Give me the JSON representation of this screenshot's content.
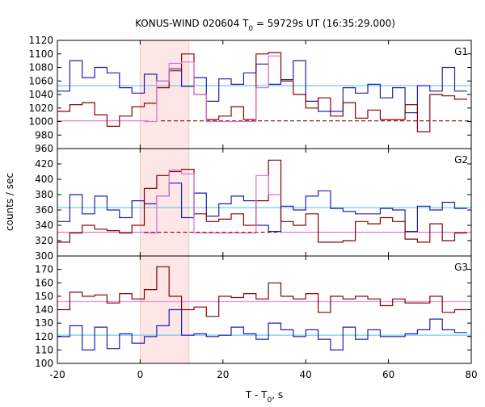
{
  "chart_data": {
    "type": "line",
    "title": "KONUS-WIND 020604 T",
    "title_subscript": "0",
    "title_suffix": " = 59729s UT (16:35:29.000)",
    "xlabel": "T - T",
    "xlabel_subscript": "0",
    "xlabel_suffix": ", s",
    "ylabel": "counts / sec",
    "xlim": [
      -20,
      80
    ],
    "x_ticks": [
      -20,
      0,
      20,
      40,
      60,
      80
    ],
    "x_tick_labels": [
      "-20",
      "0",
      "20",
      "40",
      "60",
      "80"
    ],
    "highlight_interval": [
      0,
      11.8
    ],
    "highlight_color": "#fde6e6",
    "panels": [
      {
        "label": "G1",
        "ylim": [
          960,
          1120
        ],
        "y_ticks": [
          960,
          980,
          1000,
          1020,
          1040,
          1060,
          1080,
          1100,
          1120
        ],
        "y_tick_labels": [
          "960",
          "980",
          "1000",
          "1020",
          "1040",
          "1060",
          "1080",
          "1100",
          "1120"
        ],
        "series": [
          {
            "color": "#2020b0",
            "style": "step",
            "edges": [
              -20,
              -17,
              -14,
              -11,
              -8,
              -5,
              -2,
              1,
              4,
              7,
              10,
              13,
              16,
              19,
              22,
              25,
              28,
              31,
              34,
              37,
              40,
              43,
              46,
              49,
              52,
              55,
              58,
              61,
              64,
              67,
              70,
              73,
              76,
              79
            ],
            "values": [
              1045,
              1090,
              1065,
              1080,
              1072,
              1050,
              1042,
              1070,
              1060,
              1078,
              1052,
              1065,
              1030,
              1063,
              1055,
              1072,
              1085,
              1055,
              1062,
              1090,
              1030,
              1015,
              1015,
              1050,
              1042,
              1055,
              1035,
              1050,
              1013,
              1053,
              1045,
              1080,
              1045
            ]
          },
          {
            "color": "#8b0000",
            "style": "step",
            "edges": [
              -20,
              -17,
              -14,
              -11,
              -8,
              -5,
              -2,
              1,
              4,
              7,
              10,
              13,
              16,
              19,
              22,
              25,
              28,
              31,
              34,
              37,
              40,
              43,
              46,
              49,
              52,
              55,
              58,
              61,
              64,
              67,
              70,
              73,
              76,
              79
            ],
            "values": [
              1015,
              1025,
              1028,
              1010,
              993,
              1008,
              1022,
              1027,
              1050,
              1075,
              1100,
              1040,
              1003,
              1008,
              1022,
              1003,
              1100,
              1102,
              1060,
              1040,
              1020,
              1035,
              1008,
              1028,
              1005,
              1017,
              1003,
              1003,
              1025,
              985,
              1040,
              1038,
              1033
            ]
          },
          {
            "color": "#dd70d0",
            "style": "step",
            "edges": [
              1,
              4,
              7,
              10,
              13,
              16,
              19,
              22,
              25,
              28,
              31,
              34
            ],
            "values": [
              1000,
              1060,
              1086,
              1088,
              1040,
              1000,
              1000,
              1000,
              1000,
              1050,
              1097
            ]
          }
        ],
        "baselines": [
          {
            "color": "#70c8f0",
            "style": "solid",
            "from": -20,
            "to": 80,
            "y": 1053
          },
          {
            "color": "#dd70d0",
            "style": "solid",
            "from": -20,
            "to": 2,
            "y": 1001
          },
          {
            "color": "#8b0000",
            "style": "dashed",
            "from": 5,
            "to": 80,
            "y": 1001
          }
        ]
      },
      {
        "label": "G2",
        "ylim": [
          300,
          440
        ],
        "y_ticks": [
          300,
          320,
          340,
          360,
          380,
          400,
          420
        ],
        "y_tick_labels": [
          "300",
          "320",
          "340",
          "360",
          "380",
          "400",
          "420"
        ],
        "series": [
          {
            "color": "#2020b0",
            "style": "step",
            "edges": [
              -20,
              -17,
              -14,
              -11,
              -8,
              -5,
              -2,
              1,
              4,
              7,
              10,
              13,
              16,
              19,
              22,
              25,
              28,
              31,
              34,
              37,
              40,
              43,
              46,
              49,
              52,
              55,
              58,
              61,
              64,
              67,
              70,
              73,
              76,
              79
            ],
            "values": [
              345,
              380,
              355,
              378,
              360,
              350,
              372,
              368,
              378,
              395,
              350,
              382,
              352,
              368,
              378,
              372,
              340,
              332,
              365,
              360,
              378,
              385,
              362,
              358,
              355,
              355,
              362,
              360,
              332,
              365,
              360,
              370,
              362
            ]
          },
          {
            "color": "#8b0000",
            "style": "step",
            "edges": [
              -20,
              -17,
              -14,
              -11,
              -8,
              -5,
              -2,
              1,
              4,
              7,
              10,
              13,
              16,
              19,
              22,
              25,
              28,
              31,
              34,
              37,
              40,
              43,
              46,
              49,
              52,
              55,
              58,
              61,
              64,
              67,
              70,
              73,
              76,
              79
            ],
            "values": [
              318,
              330,
              340,
              335,
              333,
              330,
              340,
              388,
              405,
              410,
              413,
              355,
              345,
              348,
              355,
              340,
              372,
              425,
              345,
              340,
              355,
              318,
              318,
              320,
              345,
              342,
              350,
              345,
              322,
              318,
              342,
              320,
              330
            ]
          },
          {
            "color": "#dd70d0",
            "style": "step",
            "edges": [
              1,
              4,
              7,
              10,
              13,
              16,
              19,
              22,
              25,
              28,
              31,
              34
            ],
            "values": [
              330,
              378,
              412,
              407,
              330,
              330,
              330,
              330,
              330,
              405,
              380
            ]
          }
        ],
        "baselines": [
          {
            "color": "#70c8f0",
            "style": "solid",
            "from": -20,
            "to": 80,
            "y": 363
          },
          {
            "color": "#dd70d0",
            "style": "solid",
            "from": -20,
            "to": 1,
            "y": 331
          },
          {
            "color": "#8b0000",
            "style": "dashed",
            "from": 1,
            "to": 34,
            "y": 331
          },
          {
            "color": "#dd70d0",
            "style": "solid",
            "from": 34,
            "to": 80,
            "y": 331
          }
        ]
      },
      {
        "label": "G3",
        "ylim": [
          100,
          180
        ],
        "y_ticks": [
          100,
          110,
          120,
          130,
          140,
          150,
          160,
          170
        ],
        "y_tick_labels": [
          "100",
          "110",
          "120",
          "130",
          "140",
          "150",
          "160",
          "170"
        ],
        "series": [
          {
            "color": "#2020b0",
            "style": "step",
            "edges": [
              -20,
              -17,
              -14,
              -11,
              -8,
              -5,
              -2,
              1,
              4,
              7,
              10,
              13,
              16,
              19,
              22,
              25,
              28,
              31,
              34,
              37,
              40,
              43,
              46,
              49,
              52,
              55,
              58,
              61,
              64,
              67,
              70,
              73,
              76,
              79
            ],
            "values": [
              120,
              128,
              110,
              127,
              111,
              122,
              115,
              120,
              128,
              140,
              121,
              122,
              120,
              121,
              127,
              122,
              118,
              130,
              125,
              120,
              125,
              118,
              110,
              127,
              118,
              125,
              120,
              120,
              122,
              125,
              133,
              125,
              123
            ]
          },
          {
            "color": "#8b0000",
            "style": "step",
            "edges": [
              -20,
              -17,
              -14,
              -11,
              -8,
              -5,
              -2,
              1,
              4,
              7,
              10,
              13,
              16,
              19,
              22,
              25,
              28,
              31,
              34,
              37,
              40,
              43,
              46,
              49,
              52,
              55,
              58,
              61,
              64,
              67,
              70,
              73,
              76,
              79
            ],
            "values": [
              140,
              153,
              150,
              151,
              145,
              152,
              148,
              155,
              172,
              150,
              140,
              142,
              135,
              150,
              149,
              152,
              148,
              160,
              150,
              148,
              152,
              138,
              150,
              148,
              150,
              148,
              143,
              148,
              145,
              145,
              150,
              138,
              140
            ]
          }
        ],
        "baselines": [
          {
            "color": "#70c8f0",
            "style": "solid",
            "from": -20,
            "to": 80,
            "y": 121
          },
          {
            "color": "#ee90d8",
            "style": "solid",
            "from": -20,
            "to": 80,
            "y": 146
          }
        ]
      }
    ]
  }
}
